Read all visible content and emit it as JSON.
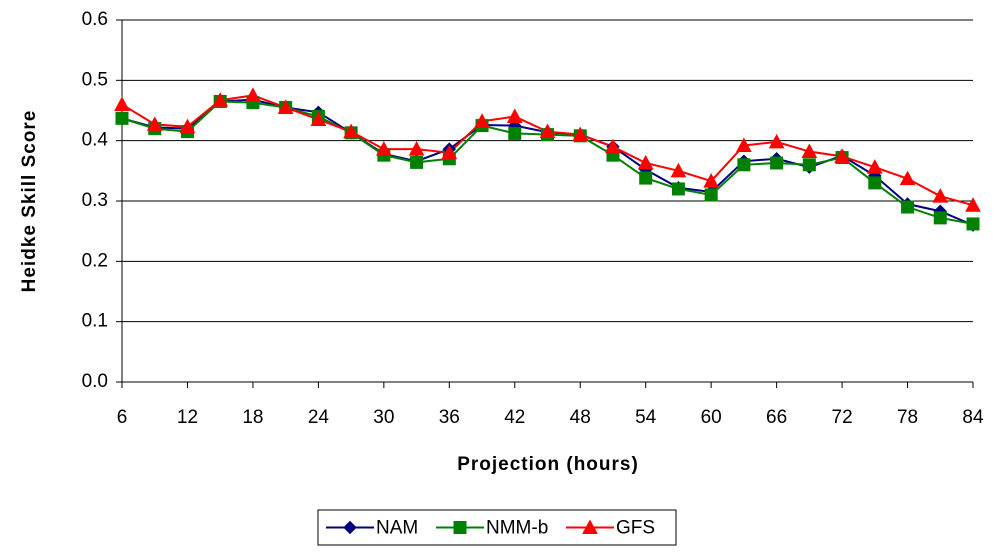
{
  "chart_data": {
    "type": "line",
    "x_label": "Projection (hours)",
    "y_label": "Heidke Skill Score",
    "x": [
      6,
      9,
      12,
      15,
      18,
      21,
      24,
      27,
      30,
      33,
      36,
      39,
      42,
      45,
      48,
      51,
      54,
      57,
      60,
      63,
      66,
      69,
      72,
      75,
      78,
      81,
      84
    ],
    "series": [
      {
        "name": "NAM",
        "color": "#000080",
        "marker": "diamond",
        "values": [
          0.437,
          0.422,
          0.42,
          0.465,
          0.468,
          0.455,
          0.447,
          0.413,
          0.378,
          0.366,
          0.386,
          0.426,
          0.425,
          0.414,
          0.41,
          0.39,
          0.352,
          0.322,
          0.315,
          0.366,
          0.37,
          0.356,
          0.375,
          0.342,
          0.295,
          0.283,
          0.26
        ]
      },
      {
        "name": "NMM-b",
        "color": "#008000",
        "marker": "square",
        "values": [
          0.437,
          0.42,
          0.415,
          0.465,
          0.463,
          0.455,
          0.44,
          0.413,
          0.376,
          0.364,
          0.37,
          0.425,
          0.412,
          0.41,
          0.408,
          0.376,
          0.338,
          0.32,
          0.31,
          0.36,
          0.363,
          0.36,
          0.372,
          0.33,
          0.29,
          0.272,
          0.262
        ]
      },
      {
        "name": "GFS",
        "color": "#ff0000",
        "marker": "triangle",
        "values": [
          0.46,
          0.427,
          0.423,
          0.467,
          0.475,
          0.455,
          0.435,
          0.415,
          0.386,
          0.386,
          0.38,
          0.432,
          0.44,
          0.415,
          0.41,
          0.39,
          0.363,
          0.35,
          0.333,
          0.392,
          0.398,
          0.382,
          0.374,
          0.356,
          0.337,
          0.308,
          0.293
        ]
      }
    ],
    "xlim": [
      6,
      84
    ],
    "xticks": [
      6,
      12,
      18,
      24,
      30,
      36,
      42,
      48,
      54,
      60,
      66,
      72,
      78,
      84
    ],
    "ylim": [
      0,
      0.6
    ],
    "yticks": [
      {
        "value": 0,
        "label": "0.0"
      },
      0.1,
      0.2,
      0.3,
      0.4,
      0.5,
      0.6
    ],
    "grid": true,
    "legend": "bottom"
  }
}
